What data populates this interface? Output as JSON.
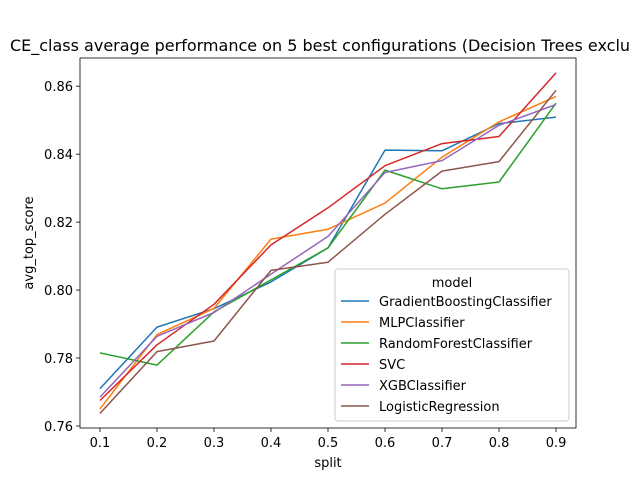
{
  "chart_data": {
    "type": "line",
    "title": "CE_class average performance on 5 best configurations (Decision Trees exclu",
    "xlabel": "split",
    "ylabel": "avg_top_score",
    "x": [
      0.1,
      0.2,
      0.3,
      0.4,
      0.5,
      0.6,
      0.7,
      0.8,
      0.9
    ],
    "x_ticks": [
      "0.1",
      "0.2",
      "0.3",
      "0.4",
      "0.5",
      "0.6",
      "0.7",
      "0.8",
      "0.9"
    ],
    "y_ticks": [
      "0.76",
      "0.78",
      "0.80",
      "0.82",
      "0.84",
      "0.86"
    ],
    "y_tick_values": [
      0.76,
      0.78,
      0.8,
      0.82,
      0.84,
      0.86
    ],
    "xlim": [
      0.065,
      0.935
    ],
    "ylim": [
      0.7594,
      0.8683
    ],
    "grid": false,
    "legend_title": "model",
    "legend_position": "lower-right",
    "series": [
      {
        "name": "GradientBoostingClassifier",
        "color": "#1f77b4",
        "values": [
          0.771,
          0.7891,
          0.7945,
          0.8024,
          0.8124,
          0.8412,
          0.841,
          0.849,
          0.8509
        ]
      },
      {
        "name": "MLPClassifier",
        "color": "#ff7f0e",
        "values": [
          0.765,
          0.7869,
          0.7946,
          0.815,
          0.8179,
          0.8256,
          0.8391,
          0.8495,
          0.857
        ]
      },
      {
        "name": "RandomForestClassifier",
        "color": "#2ca02c",
        "values": [
          0.7815,
          0.7779,
          0.7936,
          0.803,
          0.8124,
          0.8353,
          0.8298,
          0.8318,
          0.855
        ]
      },
      {
        "name": "SVC",
        "color": "#d62728",
        "values": [
          0.7675,
          0.7839,
          0.7958,
          0.8133,
          0.8242,
          0.8366,
          0.8431,
          0.8452,
          0.8639
        ]
      },
      {
        "name": "XGBClassifier",
        "color": "#9467bd",
        "values": [
          0.7685,
          0.7864,
          0.7934,
          0.8047,
          0.8158,
          0.8346,
          0.8381,
          0.8485,
          0.8546
        ]
      },
      {
        "name": "LogisticRegression",
        "color": "#8c564b",
        "values": [
          0.7637,
          0.7819,
          0.785,
          0.8058,
          0.8082,
          0.8223,
          0.835,
          0.8378,
          0.8588
        ]
      }
    ]
  }
}
